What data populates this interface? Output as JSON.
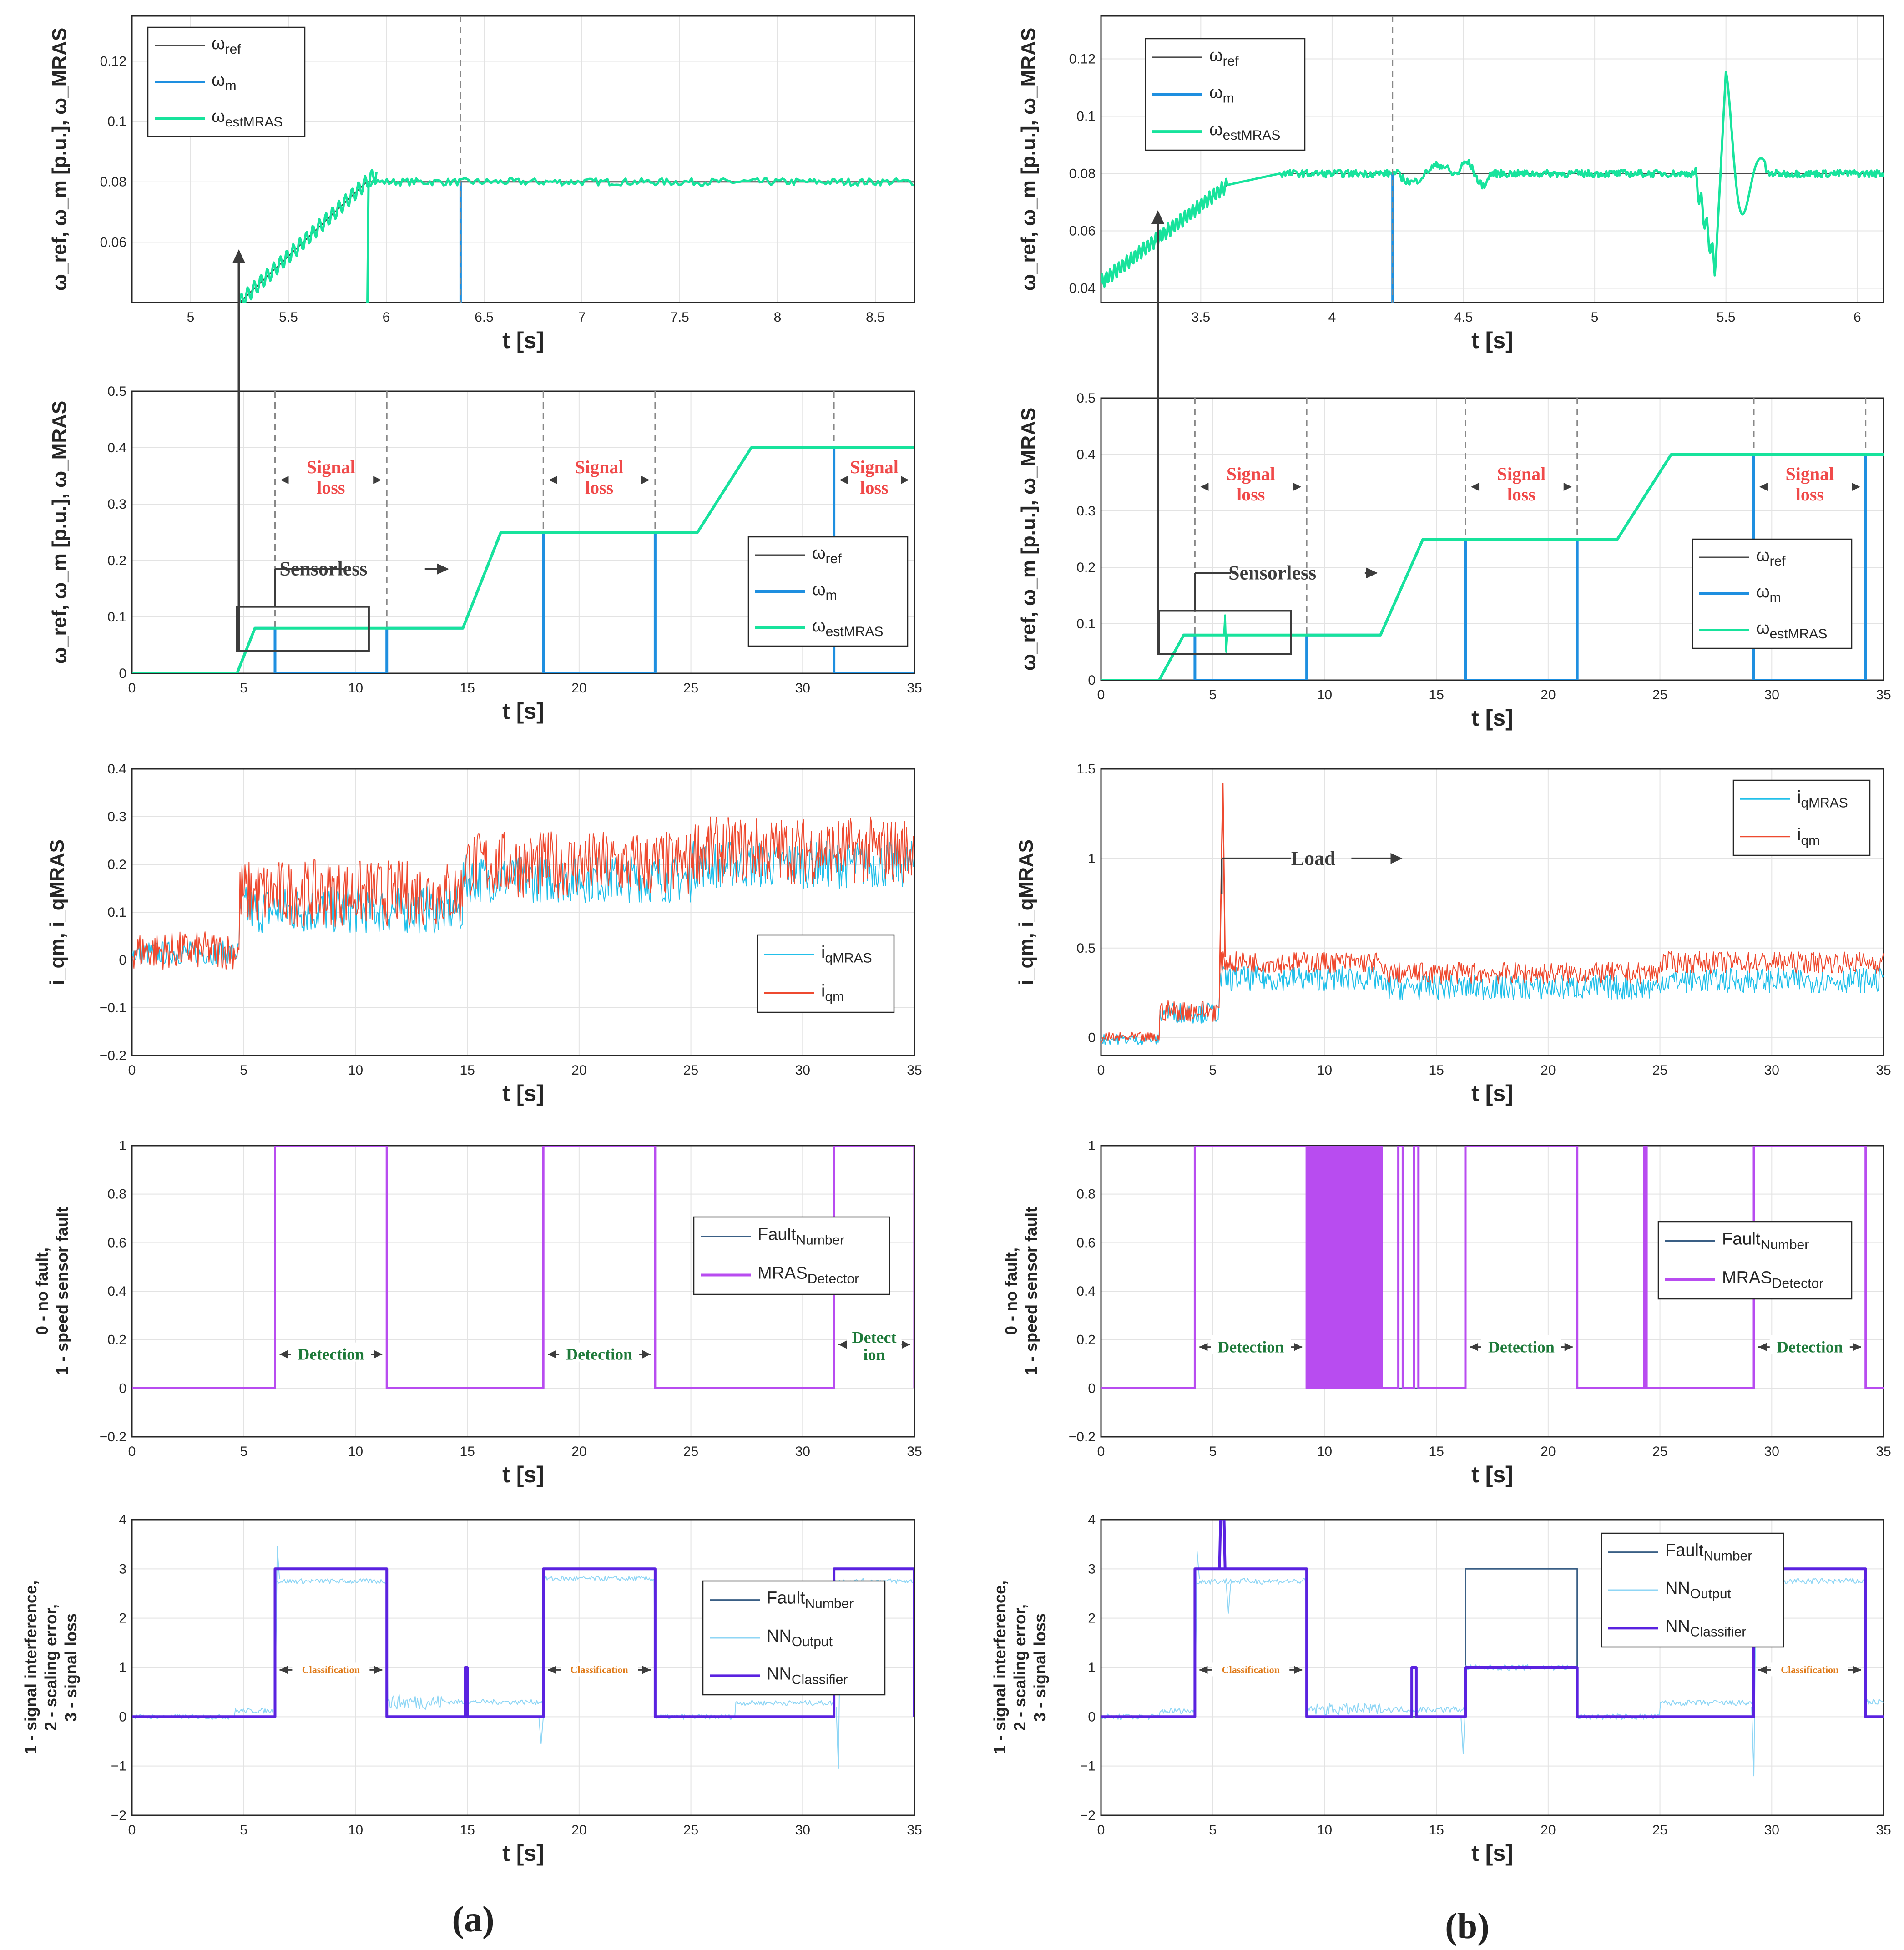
{
  "colors": {
    "ref": "#4a4a4a",
    "m": "#1e8fe0",
    "est": "#17e39c",
    "iqMRAS": "#22c0ea",
    "iqm": "#ee4a30",
    "fault": "#3a5f85",
    "detector": "#b84cf0",
    "nnOut": "#8fd6f5",
    "nnClass": "#5a22e0"
  },
  "panel_labels": {
    "a": "(a)",
    "b": "(b)"
  },
  "text": {
    "t": "t [s]",
    "y_speed": "ω_ref, ω_m [p.u.], ω_MRAS",
    "y_current": "i_qm, i_qMRAS",
    "y_det1": "0 - no fault,",
    "y_det2": "1 - speed sensor fault",
    "y_cls1": "1 - signal interference,",
    "y_cls2": "2 - scaling error,",
    "y_cls3": "3 - signal loss",
    "signal": "Signal",
    "loss": "loss",
    "sensorless": "Sensorless",
    "load": "Load",
    "detection": "Detection",
    "detect1": "Detect",
    "detect2": "ion",
    "classification": "Classification"
  },
  "legends": {
    "speed": [
      {
        "base": "ω",
        "sub": "ref"
      },
      {
        "base": "ω",
        "sub": "m"
      },
      {
        "base": "ω",
        "sub": "estMRAS"
      }
    ],
    "current": [
      {
        "base": "i",
        "sub": "qMRAS"
      },
      {
        "base": "i",
        "sub": "qm"
      }
    ],
    "detector": [
      {
        "base": "Fault",
        "sub": "Number"
      },
      {
        "base": "MRAS",
        "sub": "Detector"
      }
    ],
    "classifier": [
      {
        "base": "Fault",
        "sub": "Number"
      },
      {
        "base": "NN",
        "sub": "Output"
      },
      {
        "base": "NN",
        "sub": "Classifier"
      }
    ]
  },
  "chart_data": [
    {
      "id": "a1",
      "type": "line",
      "title": "",
      "xlabel": "t [s]",
      "ylabel": "ω_ref, ω_m [p.u.], ω_MRAS",
      "xlim": [
        4.7,
        8.7
      ],
      "ylim": [
        0.04,
        0.135
      ],
      "xticks": [
        "5",
        "5.5",
        "6",
        "6.5",
        "7",
        "7.5",
        "8",
        "8.5"
      ],
      "yticks": [
        "0.06",
        "0.08",
        "0.1",
        "0.12"
      ],
      "series": [
        {
          "name": "ω_ref",
          "points": [
            [
              5.25,
              0.04
            ],
            [
              5.9,
              0.08
            ],
            [
              8.7,
              0.08
            ]
          ]
        },
        {
          "name": "ω_m",
          "points": [
            [
              5.25,
              0.04
            ],
            [
              5.9,
              0.08
            ],
            [
              6.38,
              0.08
            ],
            [
              6.38,
              0.04
            ]
          ]
        },
        {
          "name": "ω_estMRAS",
          "note": "ramp to 0.08 then noisy ±0.002"
        }
      ],
      "dashed_line_x": 6.38
    },
    {
      "id": "a2",
      "type": "line",
      "xlabel": "t [s]",
      "ylabel": "ω_ref, ω_m [p.u.], ω_MRAS",
      "xlim": [
        0,
        35
      ],
      "ylim": [
        0,
        0.5
      ],
      "xticks": [
        "0",
        "5",
        "10",
        "15",
        "20",
        "25",
        "30",
        "35"
      ],
      "yticks": [
        "0",
        "0.1",
        "0.2",
        "0.3",
        "0.4",
        "0.5"
      ],
      "series": [
        {
          "name": "ω_ref",
          "points": [
            [
              0,
              0
            ],
            [
              4.7,
              0
            ],
            [
              5.5,
              0.08
            ],
            [
              14.8,
              0.08
            ],
            [
              16.5,
              0.25
            ],
            [
              25.3,
              0.25
            ],
            [
              27.7,
              0.4
            ],
            [
              35,
              0.4
            ]
          ]
        },
        {
          "name": "ω_m",
          "points": [
            [
              0,
              0
            ],
            [
              4.7,
              0
            ],
            [
              5.5,
              0.08
            ],
            [
              6.4,
              0.08
            ],
            [
              6.4,
              0
            ],
            [
              11.4,
              0
            ],
            [
              11.4,
              0.08
            ],
            [
              14.8,
              0.08
            ],
            [
              16.5,
              0.25
            ],
            [
              18.4,
              0.25
            ],
            [
              18.4,
              0
            ],
            [
              23.4,
              0
            ],
            [
              23.4,
              0.25
            ],
            [
              25.3,
              0.25
            ],
            [
              27.7,
              0.4
            ],
            [
              31.4,
              0.4
            ],
            [
              31.4,
              0
            ],
            [
              35,
              0
            ]
          ]
        },
        {
          "name": "ω_estMRAS",
          "points": [
            [
              0,
              0
            ],
            [
              4.7,
              0
            ],
            [
              5.5,
              0.08
            ],
            [
              14.8,
              0.08
            ],
            [
              16.5,
              0.25
            ],
            [
              25.3,
              0.25
            ],
            [
              27.7,
              0.4
            ],
            [
              35,
              0.4
            ]
          ]
        }
      ],
      "signal_loss_intervals": [
        [
          6.4,
          11.4
        ],
        [
          18.4,
          23.4
        ],
        [
          31.4,
          35
        ]
      ],
      "sensorless_from": 6.4
    },
    {
      "id": "a3",
      "type": "line",
      "xlabel": "t [s]",
      "ylabel": "i_qm, i_qMRAS",
      "xlim": [
        0,
        35
      ],
      "ylim": [
        -0.2,
        0.4
      ],
      "xticks": [
        "0",
        "5",
        "10",
        "15",
        "20",
        "25",
        "30",
        "35"
      ],
      "yticks": [
        "-0.2",
        "-0.1",
        "0",
        "0.1",
        "0.2",
        "0.3",
        "0.4"
      ],
      "series": [
        {
          "name": "i_qMRAS",
          "levels": [
            [
              0,
              4.8,
              0.02
            ],
            [
              4.8,
              14.8,
              0.12
            ],
            [
              14.8,
              25,
              0.18
            ],
            [
              25,
              35,
              0.22
            ]
          ]
        },
        {
          "name": "i_qm",
          "levels": [
            [
              0,
              4.8,
              0.02
            ],
            [
              4.8,
              14.8,
              0.14
            ],
            [
              14.8,
              25,
              0.2
            ],
            [
              25,
              35,
              0.23
            ]
          ]
        }
      ]
    },
    {
      "id": "a4",
      "type": "line",
      "xlabel": "t [s]",
      "ylabel": "0 - no fault, 1 - speed sensor fault",
      "xlim": [
        0,
        35
      ],
      "ylim": [
        -0.2,
        1
      ],
      "xticks": [
        "0",
        "5",
        "10",
        "15",
        "20",
        "25",
        "30",
        "35"
      ],
      "yticks": [
        "-0.2",
        "0",
        "0.2",
        "0.4",
        "0.6",
        "0.8",
        "1"
      ],
      "series": [
        {
          "name": "Fault_Number",
          "intervals": [
            [
              6.4,
              11.4
            ],
            [
              18.4,
              23.4
            ],
            [
              31.4,
              35
            ]
          ]
        },
        {
          "name": "MRAS_Detector",
          "intervals": [
            [
              6.4,
              11.4
            ],
            [
              18.4,
              23.4
            ],
            [
              31.4,
              35
            ]
          ]
        }
      ]
    },
    {
      "id": "a5",
      "type": "line",
      "xlabel": "t [s]",
      "ylabel": "1 - signal interference, 2 - scaling error, 3 - signal loss",
      "xlim": [
        0,
        35
      ],
      "ylim": [
        -2,
        4
      ],
      "xticks": [
        "0",
        "5",
        "10",
        "15",
        "20",
        "25",
        "30",
        "35"
      ],
      "yticks": [
        "-2",
        "-1",
        "0",
        "1",
        "2",
        "3",
        "4"
      ],
      "series": [
        {
          "name": "Fault_Number",
          "intervals": [
            [
              6.4,
              11.4,
              3
            ],
            [
              18.4,
              23.4,
              3
            ],
            [
              31.4,
              35,
              3
            ]
          ]
        },
        {
          "name": "NN_Output",
          "levels": [
            [
              6.4,
              11.4,
              2.75
            ],
            [
              18.4,
              23.4,
              2.8
            ],
            [
              31.4,
              35,
              2.75
            ]
          ]
        },
        {
          "name": "NN_Classifier",
          "intervals": [
            [
              6.4,
              11.4,
              3
            ],
            [
              14.9,
              15.0,
              1
            ],
            [
              18.4,
              23.4,
              3
            ],
            [
              31.4,
              35,
              3
            ]
          ]
        }
      ]
    },
    {
      "id": "b1",
      "type": "line",
      "xlabel": "t [s]",
      "ylabel": "ω_ref, ω_m [p.u.], ω_MRAS",
      "xlim": [
        3.12,
        6.1
      ],
      "ylim": [
        0.035,
        0.135
      ],
      "xticks": [
        "3.5",
        "4",
        "4.5",
        "5",
        "5.5",
        "6"
      ],
      "yticks": [
        "0.04",
        "0.06",
        "0.08",
        "0.1",
        "0.12"
      ],
      "series": [
        {
          "name": "ω_ref",
          "points": [
            [
              3.12,
              0.042
            ],
            [
              3.6,
              0.076
            ],
            [
              3.8,
              0.08
            ],
            [
              6.1,
              0.08
            ]
          ]
        },
        {
          "name": "ω_m",
          "points": [
            [
              3.12,
              0.042
            ],
            [
              3.6,
              0.076
            ],
            [
              3.8,
              0.08
            ],
            [
              4.23,
              0.08
            ],
            [
              4.23,
              0.035
            ]
          ]
        },
        {
          "name": "ω_estMRAS",
          "note": "disturbance at 5.4-5.6 s, min 0.045, max 0.116"
        }
      ],
      "dashed_line_x": 4.23
    },
    {
      "id": "b2",
      "type": "line",
      "xlabel": "t [s]",
      "ylabel": "ω_ref, ω_m [p.u.], ω_MRAS",
      "xlim": [
        0,
        35
      ],
      "ylim": [
        0,
        0.5
      ],
      "xticks": [
        "0",
        "5",
        "10",
        "15",
        "20",
        "25",
        "30",
        "35"
      ],
      "yticks": [
        "0",
        "0.1",
        "0.2",
        "0.3",
        "0.4",
        "0.5"
      ],
      "series": [
        {
          "name": "ω_ref",
          "points": [
            [
              0,
              0
            ],
            [
              2.6,
              0
            ],
            [
              3.7,
              0.08
            ],
            [
              12.5,
              0.08
            ],
            [
              14.4,
              0.25
            ],
            [
              23.1,
              0.25
            ],
            [
              25.5,
              0.4
            ],
            [
              35,
              0.4
            ]
          ]
        },
        {
          "name": "ω_m",
          "points": [
            [
              0,
              0
            ],
            [
              2.6,
              0
            ],
            [
              3.7,
              0.08
            ],
            [
              4.2,
              0.08
            ],
            [
              4.2,
              0
            ],
            [
              9.2,
              0
            ],
            [
              9.2,
              0.08
            ],
            [
              12.5,
              0.08
            ],
            [
              14.4,
              0.25
            ],
            [
              16.3,
              0.25
            ],
            [
              16.3,
              0
            ],
            [
              21.3,
              0
            ],
            [
              21.3,
              0.25
            ],
            [
              23.1,
              0.25
            ],
            [
              25.5,
              0.4
            ],
            [
              29.2,
              0.4
            ],
            [
              29.2,
              0
            ],
            [
              34.2,
              0
            ],
            [
              34.2,
              0.4
            ]
          ]
        },
        {
          "name": "ω_estMRAS",
          "points": [
            [
              0,
              0
            ],
            [
              2.6,
              0
            ],
            [
              3.7,
              0.08
            ],
            [
              12.5,
              0.08
            ],
            [
              14.4,
              0.25
            ],
            [
              23.1,
              0.25
            ],
            [
              25.5,
              0.4
            ],
            [
              35,
              0.4
            ]
          ]
        }
      ],
      "signal_loss_intervals": [
        [
          4.2,
          9.2
        ],
        [
          16.3,
          21.3
        ],
        [
          29.2,
          34.2
        ]
      ],
      "sensorless_from": 4.2
    },
    {
      "id": "b3",
      "type": "line",
      "xlabel": "t [s]",
      "ylabel": "i_qm, i_qMRAS",
      "xlim": [
        0,
        35
      ],
      "ylim": [
        -0.1,
        1.5
      ],
      "xticks": [
        "0",
        "5",
        "10",
        "15",
        "20",
        "25",
        "30",
        "35"
      ],
      "yticks": [
        "0",
        "0.5",
        "1",
        "1.5"
      ],
      "series": [
        {
          "name": "i_qMRAS",
          "levels": [
            [
              0,
              2.6,
              0.0
            ],
            [
              2.6,
              5.3,
              0.15
            ],
            [
              5.3,
              12.5,
              0.33
            ],
            [
              12.5,
              35,
              0.3
            ]
          ]
        },
        {
          "name": "i_qm",
          "levels": [
            [
              0,
              2.6,
              0.0
            ],
            [
              2.6,
              5.3,
              0.15
            ],
            [
              5.3,
              12.5,
              0.42
            ],
            [
              12.5,
              25,
              0.36
            ],
            [
              25,
              35,
              0.42
            ]
          ]
        }
      ],
      "load_at": 5.4
    },
    {
      "id": "b4",
      "type": "line",
      "xlabel": "t [s]",
      "ylabel": "0 - no fault, 1 - speed sensor fault",
      "xlim": [
        0,
        35
      ],
      "ylim": [
        -0.2,
        1
      ],
      "xticks": [
        "0",
        "5",
        "10",
        "15",
        "20",
        "25",
        "30",
        "35"
      ],
      "yticks": [
        "-0.2",
        "0",
        "0.2",
        "0.4",
        "0.6",
        "0.8",
        "1"
      ],
      "series": [
        {
          "name": "Fault_Number",
          "intervals": [
            [
              4.2,
              9.2
            ],
            [
              16.3,
              21.3
            ],
            [
              29.2,
              34.2
            ]
          ]
        },
        {
          "name": "MRAS_Detector",
          "intervals": [
            [
              4.2,
              9.2
            ],
            [
              9.2,
              12.6
            ],
            [
              13.3,
              13.5
            ],
            [
              14.0,
              14.2
            ],
            [
              16.3,
              21.3
            ],
            [
              24.3,
              24.4
            ],
            [
              29.2,
              34.2
            ]
          ]
        }
      ]
    },
    {
      "id": "b5",
      "type": "line",
      "xlabel": "t [s]",
      "ylabel": "1 - signal interference, 2 - scaling error, 3 - signal loss",
      "xlim": [
        0,
        35
      ],
      "ylim": [
        -2,
        4
      ],
      "xticks": [
        "0",
        "5",
        "10",
        "15",
        "20",
        "25",
        "30",
        "35"
      ],
      "yticks": [
        "-2",
        "-1",
        "0",
        "1",
        "2",
        "3",
        "4"
      ],
      "series": [
        {
          "name": "Fault_Number",
          "intervals": [
            [
              4.2,
              9.2,
              3
            ],
            [
              16.3,
              21.3,
              3
            ],
            [
              29.2,
              34.2,
              3
            ]
          ]
        },
        {
          "name": "NN_Output",
          "levels": [
            [
              4.2,
              9.2,
              2.75
            ],
            [
              16.3,
              21.3,
              1.0
            ],
            [
              29.2,
              34.2,
              2.75
            ]
          ]
        },
        {
          "name": "NN_Classifier",
          "intervals": [
            [
              4.2,
              9.2,
              3
            ],
            [
              5.3,
              5.5,
              4
            ],
            [
              13.9,
              14.1,
              1
            ],
            [
              16.3,
              21.3,
              1
            ],
            [
              29.2,
              34.2,
              3
            ]
          ]
        }
      ]
    }
  ]
}
